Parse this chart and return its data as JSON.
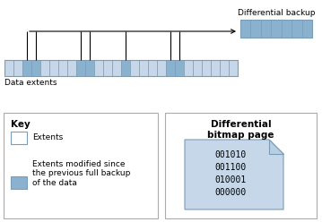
{
  "title": "Differential backup",
  "data_extents_label": "Data extents",
  "key_title": "Key",
  "key_item1": "Extents",
  "key_item2": "Extents modified since\nthe previous full backup\nof the data",
  "bitmap_title": "Differential\nbitmap page",
  "bitmap_lines": [
    "001010",
    "001100",
    "010001",
    "000000"
  ],
  "color_light": "#c5d7e8",
  "color_medium": "#8ab2cf",
  "color_white": "#ffffff",
  "color_outline": "#7a9cb8",
  "num_extents": 26,
  "modified_indices": [
    2,
    3,
    8,
    9,
    13,
    18,
    19
  ],
  "backup_num_cells": 7,
  "fig_w": 3.59,
  "fig_h": 2.48,
  "dpi": 100
}
